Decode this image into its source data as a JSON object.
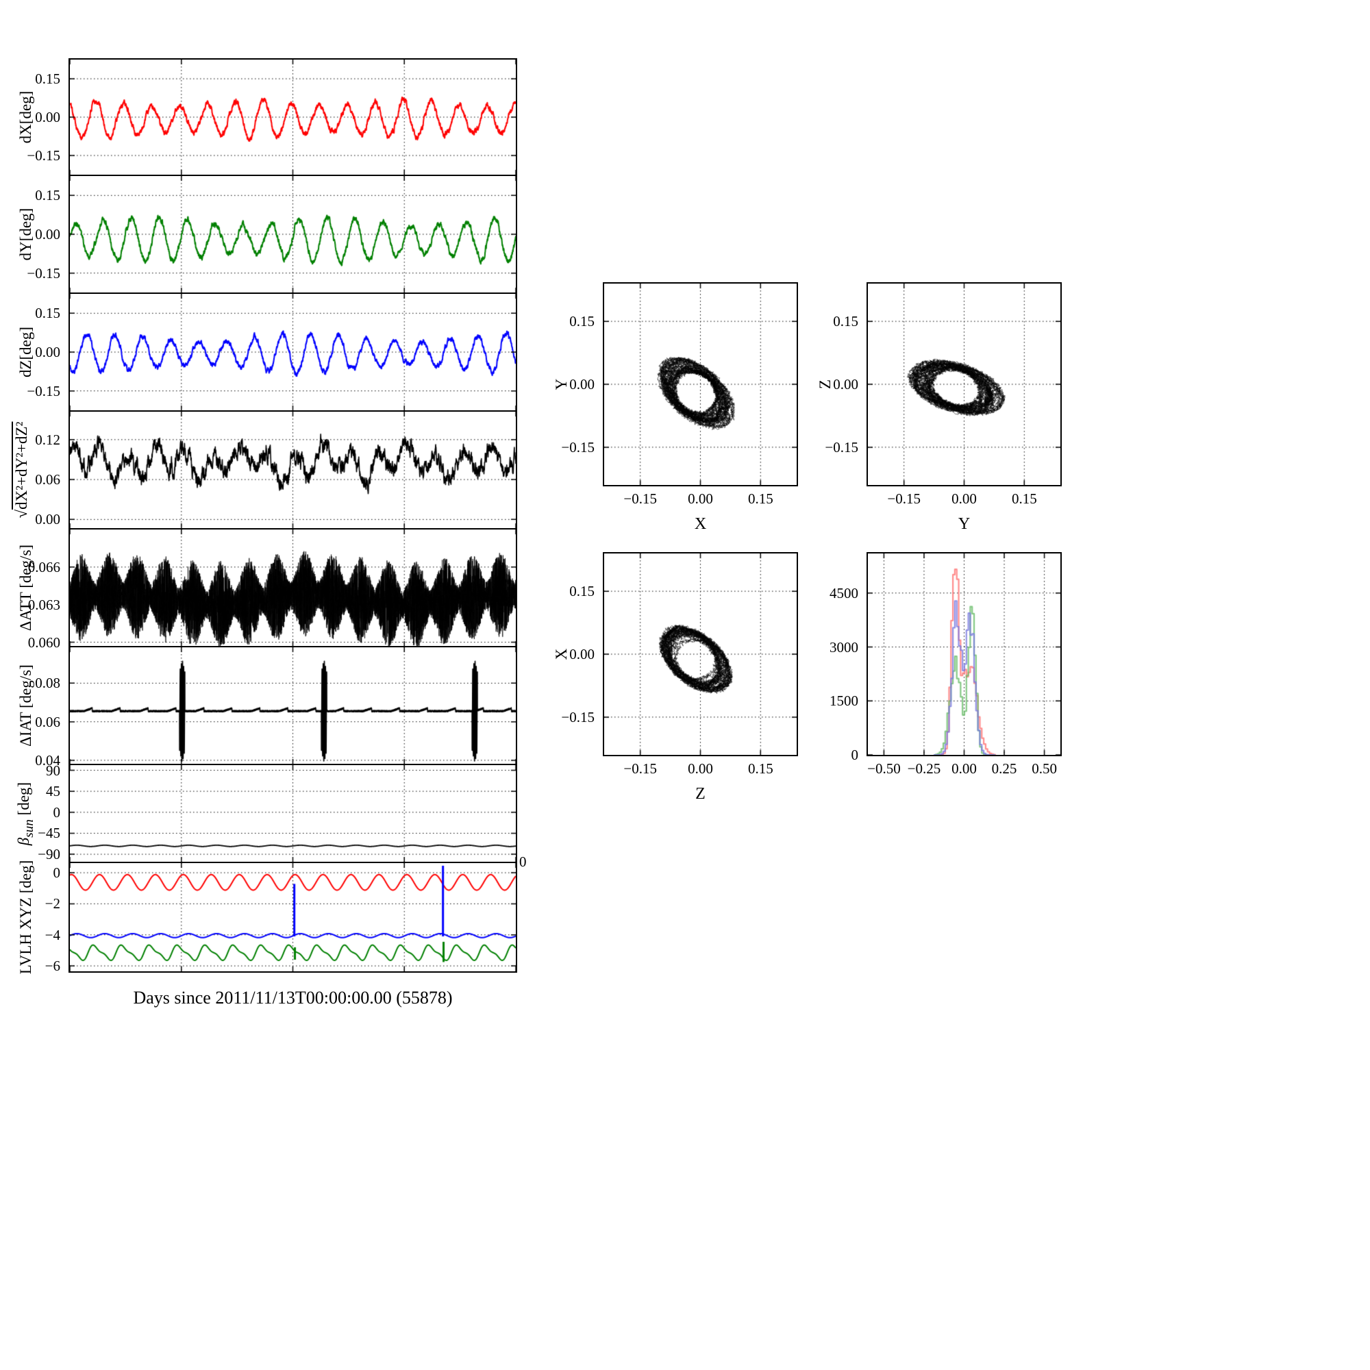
{
  "figure": {
    "background": "#ffffff",
    "xlabel": "Days since 2011/11/13T00:00:00.00 (55878)",
    "stray_zero": "0"
  },
  "chart_data": [
    {
      "id": "dX",
      "type": "line",
      "ylabel": "dX[deg]",
      "ylabOff": -64,
      "xlim": [
        0,
        15
      ],
      "ylim": [
        -0.225,
        0.225
      ],
      "grid": true,
      "xticks": [
        {
          "v": 0,
          "label": ""
        },
        {
          "v": 3.75,
          "label": ""
        },
        {
          "v": 7.5,
          "label": ""
        },
        {
          "v": 11.25,
          "label": ""
        },
        {
          "v": 15,
          "label": ""
        }
      ],
      "yticks": [
        {
          "v": -0.15,
          "label": "−0.15"
        },
        {
          "v": 0,
          "label": "0.00"
        },
        {
          "v": 0.15,
          "label": "0.15"
        }
      ],
      "summary": "X pointing error: ~16 oscillation cycles over 15 days, period ≈0.94 d, range ≈ −0.10 to +0.08 deg",
      "series": [
        {
          "kind": "osc",
          "color": "#ff0000",
          "lw": 2.0,
          "mean": -0.008,
          "amp": 0.062,
          "period": 0.94,
          "phase": 2.0,
          "modAmp": 0.18,
          "modPeriod": 5.3,
          "modPhase": 0.5,
          "noise": 0.011,
          "seed": 101
        }
      ]
    },
    {
      "id": "dY",
      "type": "line",
      "ylabel": "dY[deg]",
      "ylabOff": -64,
      "xlim": [
        0,
        15
      ],
      "ylim": [
        -0.225,
        0.225
      ],
      "grid": true,
      "xticks": [
        {
          "v": 0,
          "label": ""
        },
        {
          "v": 3.75,
          "label": ""
        },
        {
          "v": 7.5,
          "label": ""
        },
        {
          "v": 11.25,
          "label": ""
        },
        {
          "v": 15,
          "label": ""
        }
      ],
      "yticks": [
        {
          "v": -0.15,
          "label": "−0.15"
        },
        {
          "v": 0,
          "label": "0.00"
        },
        {
          "v": 0.15,
          "label": "0.15"
        }
      ],
      "summary": "Y pointing error: period ≈0.94 d, range ≈ −0.13 to +0.09 deg, amplitude grows in second half",
      "series": [
        {
          "kind": "osc",
          "color": "#008000",
          "lw": 2.0,
          "mean": -0.02,
          "amp": 0.07,
          "period": 0.94,
          "phase": 0.3,
          "modAmp": 0.22,
          "modPeriod": 6.1,
          "modPhase": -1.2,
          "noise": 0.011,
          "seed": 202
        }
      ]
    },
    {
      "id": "dZ",
      "type": "line",
      "ylabel": "dZ[deg]",
      "ylabOff": -64,
      "xlim": [
        0,
        15
      ],
      "ylim": [
        -0.225,
        0.225
      ],
      "grid": true,
      "xticks": [
        {
          "v": 0,
          "label": ""
        },
        {
          "v": 3.75,
          "label": ""
        },
        {
          "v": 7.5,
          "label": ""
        },
        {
          "v": 11.25,
          "label": ""
        },
        {
          "v": 15,
          "label": ""
        }
      ],
      "yticks": [
        {
          "v": -0.15,
          "label": "−0.15"
        },
        {
          "v": 0,
          "label": "0.00"
        },
        {
          "v": 0.15,
          "label": "0.15"
        }
      ],
      "summary": "Z pointing error: period ≈0.94 d, range ≈ −0.10 to +0.09 deg",
      "series": [
        {
          "kind": "osc",
          "color": "#0000ff",
          "lw": 2.0,
          "mean": -0.005,
          "amp": 0.06,
          "period": 0.94,
          "phase": 4.0,
          "modAmp": 0.25,
          "modPeriod": 7.0,
          "modPhase": 0.8,
          "noise": 0.01,
          "seed": 303
        }
      ]
    },
    {
      "id": "mag",
      "type": "line",
      "ylabel": {
        "pre": "√",
        "over": "dX²+dY²+dZ²"
      },
      "ylabOff": -70,
      "xlim": [
        0,
        15
      ],
      "ylim": [
        -0.013,
        0.162
      ],
      "grid": true,
      "xticks": [
        {
          "v": 0,
          "label": ""
        },
        {
          "v": 3.75,
          "label": ""
        },
        {
          "v": 7.5,
          "label": ""
        },
        {
          "v": 11.25,
          "label": ""
        },
        {
          "v": 15,
          "label": ""
        }
      ],
      "yticks": [
        {
          "v": 0,
          "label": "0.00"
        },
        {
          "v": 0.06,
          "label": "0.06"
        },
        {
          "v": 0.12,
          "label": "0.12"
        }
      ],
      "summary": "Total pointing error magnitude: noisy, mean ≈0.085 deg, range ≈0.04–0.13 deg",
      "series": [
        {
          "kind": "noisy",
          "color": "#000000",
          "lw": 1.6,
          "mean": 0.085,
          "amp1": 0.018,
          "period1": 0.94,
          "phase1": 1.0,
          "amp2": 0.01,
          "period2": 2.7,
          "phase2": 0.4,
          "noise": 0.013,
          "seed": 404
        }
      ]
    },
    {
      "id": "dATT",
      "type": "line",
      "ylabel": "ΔATT [deg/s]",
      "ylabOff": -64,
      "xlim": [
        0,
        15
      ],
      "ylim": [
        0.0597,
        0.069
      ],
      "grid": true,
      "xticks": [
        {
          "v": 0,
          "label": ""
        },
        {
          "v": 3.75,
          "label": ""
        },
        {
          "v": 7.5,
          "label": ""
        },
        {
          "v": 11.25,
          "label": ""
        },
        {
          "v": 15,
          "label": ""
        }
      ],
      "yticks": [
        {
          "v": 0.06,
          "label": "0.060"
        },
        {
          "v": 0.063,
          "label": "0.063"
        },
        {
          "v": 0.066,
          "label": "0.066"
        }
      ],
      "summary": "Attitude rate: dense noise band centred at ≈0.0635 deg/s spanning ≈0.060–0.0675 with ~daily envelope bulges",
      "series": [
        {
          "kind": "band",
          "color": "#000000",
          "mean": 0.0634,
          "envBase": 0.0011,
          "envAmp": 0.0024,
          "envPeriod": 0.94,
          "envPhase": 0.3,
          "drift": 0.0004,
          "seed": 505
        }
      ]
    },
    {
      "id": "dIAT",
      "type": "line",
      "ylabel": "ΔIAT [deg/s]",
      "ylabOff": -64,
      "xlim": [
        0,
        15
      ],
      "ylim": [
        0.0382,
        0.0986
      ],
      "grid": true,
      "xticks": [
        {
          "v": 0,
          "label": ""
        },
        {
          "v": 3.75,
          "label": ""
        },
        {
          "v": 7.5,
          "label": ""
        },
        {
          "v": 11.25,
          "label": ""
        },
        {
          "v": 15,
          "label": ""
        }
      ],
      "yticks": [
        {
          "v": 0.04,
          "label": "0.04"
        },
        {
          "v": 0.06,
          "label": "0.06"
        },
        {
          "v": 0.08,
          "label": "0.08"
        }
      ],
      "summary": "Integrated attitude rate: quiet baseline ≈0.065–0.068 deg/s with three large spike clusters near days 3.8, 8.6, 13.6 spanning ≈0.04–0.093",
      "series": [
        {
          "kind": "spikes",
          "color": "#000000",
          "lw": 1.6,
          "base": 0.0655,
          "rippleAmp": 0.0015,
          "ripplePeriod": 0.94,
          "ripplePhase": 0.2,
          "noise": 0.0004,
          "spikes": [
            3.78,
            8.55,
            13.62
          ],
          "spikeAmp": 0.027,
          "spikeWidth": 0.09,
          "seed": 606
        }
      ]
    },
    {
      "id": "bsun",
      "type": "line",
      "ylabel": {
        "pre_i": "β",
        "sub_i": "sun",
        "post": " [deg]"
      },
      "ylabOff": -64,
      "xlim": [
        0,
        15
      ],
      "ylim": [
        -106,
        101
      ],
      "grid": true,
      "xticks": [
        {
          "v": 0,
          "label": ""
        },
        {
          "v": 3.75,
          "label": ""
        },
        {
          "v": 7.5,
          "label": ""
        },
        {
          "v": 11.25,
          "label": ""
        },
        {
          "v": 15,
          "label": ""
        }
      ],
      "yticks": [
        {
          "v": -90,
          "label": "−90"
        },
        {
          "v": -45,
          "label": "−45"
        },
        {
          "v": 0,
          "label": "0"
        },
        {
          "v": 45,
          "label": "45"
        },
        {
          "v": 90,
          "label": "90"
        }
      ],
      "summary": "Solar beta angle: nearly constant ≈ −72 deg with small ≈±1.4 deg daily ripple",
      "series": [
        {
          "kind": "flat",
          "color": "#000000",
          "lw": 1.8,
          "mean": -72,
          "amp": 1.4,
          "period": 0.94,
          "seed": 707
        }
      ]
    },
    {
      "id": "lvlh",
      "type": "line",
      "ylabel": "LVLH XYZ [deg]",
      "ylabOff": -64,
      "xlim": [
        0,
        15
      ],
      "ylim": [
        -6.35,
        0.62
      ],
      "grid": true,
      "xticks": [
        {
          "v": 0,
          "label": ""
        },
        {
          "v": 3.75,
          "label": ""
        },
        {
          "v": 7.5,
          "label": ""
        },
        {
          "v": 11.25,
          "label": ""
        },
        {
          "v": 15,
          "label": ""
        }
      ],
      "yticks": [
        {
          "v": 0,
          "label": "0"
        },
        {
          "v": -2,
          "label": "−2"
        },
        {
          "v": -4,
          "label": "−4"
        },
        {
          "v": -6,
          "label": "−6"
        }
      ],
      "summary": "LVLH Euler angles: X (red) ≈ −0.6±0.5 deg, Y (blue) ≈ −4.05±0.13 deg with vertical excursions near days 7.55 and 12.55, Z (green) ≈ −5.15±0.45 deg",
      "series": [
        {
          "kind": "multi",
          "seed": 811,
          "lines": [
            {
              "color": "#ff0000",
              "mean": -0.62,
              "amp": 0.5,
              "period": 0.94,
              "phase": 1.2,
              "shape2": 0.0
            },
            {
              "color": "#0000ff",
              "mean": -4.05,
              "amp": 0.13,
              "period": 0.94,
              "phase": 0.0,
              "shape2": 0.0
            },
            {
              "color": "#008000",
              "mean": -5.15,
              "amp": 0.42,
              "period": 0.94,
              "phase": 2.2,
              "shape2": 0.35
            }
          ],
          "events": [
            {
              "x": 7.55,
              "from": -4.1,
              "to": -0.72,
              "color": "#0000ff"
            },
            {
              "x": 12.55,
              "from": -4.1,
              "to": 0.45,
              "color": "#0000ff"
            },
            {
              "x": 7.57,
              "from": -5.6,
              "to": -4.8,
              "color": "#008000"
            },
            {
              "x": 12.57,
              "from": -5.75,
              "to": -4.45,
              "color": "#008000"
            }
          ]
        }
      ]
    },
    {
      "id": "scatterYX",
      "type": "scatter",
      "xlabel": "X",
      "ylabel": "Y",
      "ylabOff": -62,
      "xlim": [
        -0.24,
        0.24
      ],
      "ylim": [
        -0.24,
        0.24
      ],
      "grid": true,
      "xticks": [
        {
          "v": -0.15,
          "label": "−0.15"
        },
        {
          "v": 0,
          "label": "0.00"
        },
        {
          "v": 0.15,
          "label": "0.15"
        }
      ],
      "yticks": [
        {
          "v": -0.15,
          "label": "−0.15"
        },
        {
          "v": 0,
          "label": "0.00"
        },
        {
          "v": 0.15,
          "label": "0.15"
        }
      ],
      "summary": "dY vs dX trajectory: tilted annular loop cloud, centre ≈(−0.01,−0.02), extent ≈ ±0.11 deg, tilt ≈ −38°",
      "series": [
        {
          "kind": "loop",
          "color": "#000000",
          "a": 0.105,
          "b": 0.052,
          "rot": -38,
          "cx": -0.012,
          "cy": -0.02,
          "loops": 34,
          "sMin": 0.5,
          "sMax": 1.06,
          "jitter": 0.0045,
          "seed": 808
        }
      ]
    },
    {
      "id": "scatterZY",
      "type": "scatter",
      "xlabel": "Y",
      "ylabel": "Z",
      "ylabOff": -62,
      "xlim": [
        -0.24,
        0.24
      ],
      "ylim": [
        -0.24,
        0.24
      ],
      "grid": true,
      "xticks": [
        {
          "v": -0.15,
          "label": "−0.15"
        },
        {
          "v": 0,
          "label": "0.00"
        },
        {
          "v": 0.15,
          "label": "0.15"
        }
      ],
      "yticks": [
        {
          "v": -0.15,
          "label": "−0.15"
        },
        {
          "v": 0,
          "label": "0.00"
        },
        {
          "v": 0.15,
          "label": "0.15"
        }
      ],
      "summary": "dZ vs dY trajectory: flattened annular loop cloud, centre ≈(−0.02,−0.01), extent ≈ −0.13 to +0.10, tilt ≈ −16°",
      "series": [
        {
          "kind": "loop",
          "color": "#000000",
          "a": 0.115,
          "b": 0.048,
          "rot": -16,
          "cx": -0.02,
          "cy": -0.008,
          "loops": 34,
          "sMin": 0.5,
          "sMax": 1.06,
          "jitter": 0.0045,
          "seed": 909
        }
      ]
    },
    {
      "id": "scatterXZ",
      "type": "scatter",
      "xlabel": "Z",
      "ylabel": "X",
      "ylabOff": -62,
      "xlim": [
        -0.24,
        0.24
      ],
      "ylim": [
        -0.24,
        0.24
      ],
      "grid": true,
      "xticks": [
        {
          "v": -0.15,
          "label": "−0.15"
        },
        {
          "v": 0,
          "label": "0.00"
        },
        {
          "v": 0.15,
          "label": "0.15"
        }
      ],
      "yticks": [
        {
          "v": -0.15,
          "label": "−0.15"
        },
        {
          "v": 0,
          "label": "0.00"
        },
        {
          "v": 0.15,
          "label": "0.15"
        }
      ],
      "summary": "dX vs dZ trajectory: tilted annular loop cloud, centre ≈(−0.01,−0.01), extent ≈ ±0.10 deg, tilt ≈ −38°",
      "series": [
        {
          "kind": "loop",
          "color": "#000000",
          "a": 0.098,
          "b": 0.05,
          "rot": -38,
          "cx": -0.012,
          "cy": -0.012,
          "loops": 30,
          "sMin": 0.5,
          "sMax": 1.05,
          "jitter": 0.0045,
          "seed": 1010
        }
      ]
    },
    {
      "id": "hist",
      "type": "histogram",
      "xlim": [
        -0.6,
        0.6
      ],
      "ylim": [
        0,
        5600
      ],
      "grid": true,
      "xticks": [
        {
          "v": -0.5,
          "label": "−0.50"
        },
        {
          "v": -0.25,
          "label": "−0.25"
        },
        {
          "v": 0,
          "label": "0.00"
        },
        {
          "v": 0.25,
          "label": "0.25"
        },
        {
          "v": 0.5,
          "label": "0.50"
        }
      ],
      "yticks": [
        {
          "v": 0,
          "label": "0"
        },
        {
          "v": 1500,
          "label": "1500"
        },
        {
          "v": 3000,
          "label": "3000"
        },
        {
          "v": 4500,
          "label": "4500"
        }
      ],
      "bins": {
        "start": -0.19,
        "width": 0.012,
        "n": 32
      },
      "summary": "Histograms of dX (red), dY (green), dZ (blue): bimodal, peaks near −0.05 and +0.04 deg; max counts ≈5100 (red), ≈4400 (green), ≈4000 (blue)",
      "series": [
        {
          "kind": "hist",
          "color": "#ff7070",
          "seed": 120,
          "peaks": [
            {
              "A": 5150,
              "m": -0.055,
              "s": 0.022
            },
            {
              "A": 2500,
              "m": 0.035,
              "s": 0.045
            }
          ]
        },
        {
          "kind": "hist",
          "color": "#66bb66",
          "seed": 121,
          "peaks": [
            {
              "A": 2600,
              "m": -0.055,
              "s": 0.035
            },
            {
              "A": 4350,
              "m": 0.05,
              "s": 0.022
            }
          ]
        },
        {
          "kind": "hist",
          "color": "#7777e0",
          "seed": 122,
          "peaks": [
            {
              "A": 3950,
              "m": -0.048,
              "s": 0.028
            },
            {
              "A": 3650,
              "m": 0.038,
              "s": 0.03
            }
          ]
        }
      ]
    }
  ]
}
